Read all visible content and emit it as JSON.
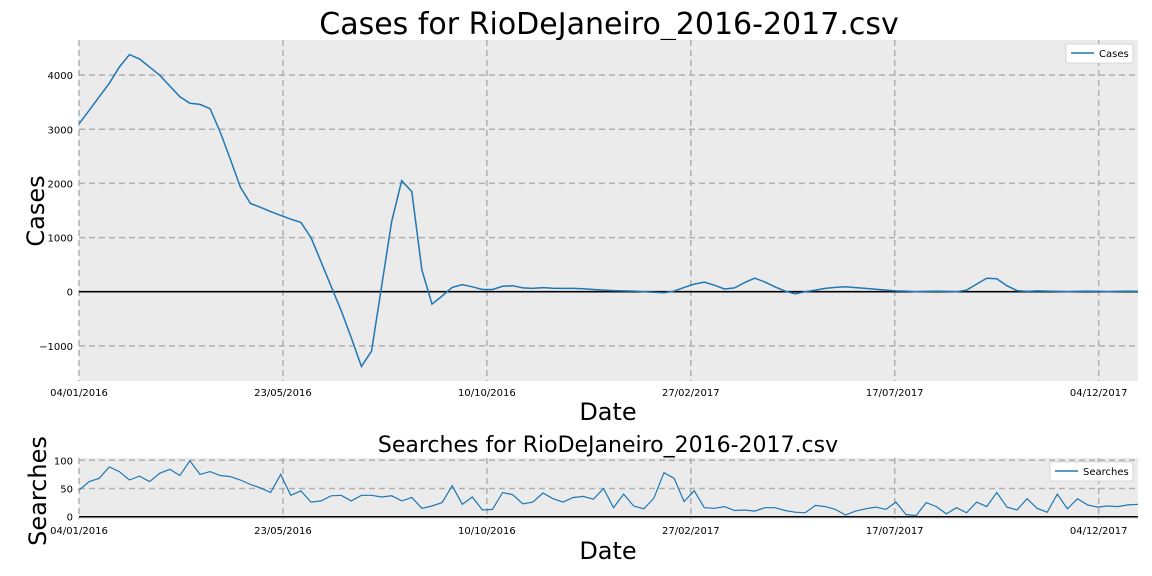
{
  "colors": {
    "series": "#1f77b4",
    "plot_bg": "#ebebeb",
    "grid": "#b0b0b0",
    "zero_line": "#000000"
  },
  "chart_data": [
    {
      "type": "line",
      "title": "Cases for RioDeJaneiro_2016-2017.csv",
      "xlabel": "Date",
      "ylabel": "Cases",
      "x_start": "04/01/2016",
      "x_end": "31/12/2017",
      "xticks": [
        "04/01/2016",
        "23/05/2016",
        "10/10/2016",
        "27/02/2017",
        "17/07/2017",
        "04/12/2017"
      ],
      "yticks": [
        -1000,
        0,
        1000,
        2000,
        3000,
        4000
      ],
      "ylim": [
        -1650,
        4650
      ],
      "grid": true,
      "legend": "top-right",
      "series": [
        {
          "name": "Cases",
          "values": [
            3100,
            3350,
            3600,
            3850,
            4150,
            4380,
            4300,
            4150,
            4000,
            3800,
            3600,
            3480,
            3460,
            3380,
            2950,
            2450,
            1930,
            1630,
            1560,
            1480,
            1410,
            1340,
            1280,
            1000,
            550,
            100,
            -350,
            -850,
            -1380,
            -1100,
            100,
            1300,
            2050,
            1850,
            400,
            -230,
            -80,
            80,
            130,
            90,
            40,
            40,
            100,
            110,
            70,
            60,
            75,
            65,
            60,
            60,
            55,
            40,
            30,
            20,
            15,
            10,
            0,
            -10,
            -20,
            10,
            80,
            140,
            175,
            120,
            50,
            70,
            170,
            250,
            180,
            90,
            10,
            -40,
            0,
            30,
            60,
            80,
            90,
            75,
            60,
            45,
            30,
            15,
            10,
            0,
            5,
            10,
            5,
            0,
            30,
            140,
            250,
            240,
            110,
            20,
            5,
            15,
            10,
            5,
            0,
            5,
            10,
            5,
            0,
            5,
            10,
            5
          ]
        }
      ]
    },
    {
      "type": "line",
      "title": "Searches for RioDeJaneiro_2016-2017.csv",
      "xlabel": "Date",
      "ylabel": "Searches",
      "x_start": "04/01/2016",
      "x_end": "31/12/2017",
      "xticks": [
        "04/01/2016",
        "23/05/2016",
        "10/10/2016",
        "27/02/2017",
        "17/07/2017",
        "04/12/2017"
      ],
      "yticks": [
        0,
        50,
        100
      ],
      "ylim": [
        -4,
        104
      ],
      "grid": true,
      "legend": "top-right",
      "series": [
        {
          "name": "Searches",
          "values": [
            47,
            62,
            68,
            88,
            80,
            65,
            72,
            62,
            77,
            84,
            73,
            99,
            75,
            80,
            73,
            71,
            65,
            57,
            51,
            43,
            75,
            38,
            46,
            26,
            28,
            37,
            38,
            28,
            38,
            38,
            35,
            37,
            28,
            34,
            15,
            19,
            25,
            55,
            22,
            35,
            12,
            13,
            43,
            39,
            23,
            26,
            42,
            32,
            26,
            34,
            36,
            31,
            50,
            16,
            40,
            19,
            14,
            33,
            78,
            68,
            27,
            46,
            16,
            15,
            18,
            11,
            12,
            10,
            16,
            16,
            11,
            8,
            7,
            20,
            18,
            13,
            3,
            10,
            14,
            17,
            13,
            26,
            4,
            2,
            25,
            18,
            5,
            16,
            7,
            26,
            18,
            43,
            17,
            12,
            32,
            15,
            8,
            40,
            14,
            32,
            21,
            17,
            19,
            18,
            21,
            22
          ]
        }
      ]
    }
  ]
}
